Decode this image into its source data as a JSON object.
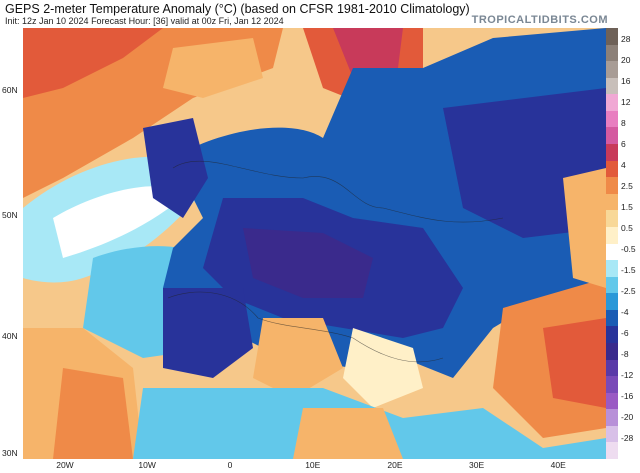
{
  "header": {
    "title": "GEPS 2-meter Temperature Anomaly (°C) (based on CFSR 1981-2010 Climatology)",
    "subtitle": "Init: 12z Jan 10 2024   Forecast Hour: [36]   valid at 00z Fri, Jan 12 2024",
    "brand": "TROPICALTIDBITS.COM"
  },
  "axes": {
    "lat_labels": [
      {
        "text": "60N",
        "frac": 0.145
      },
      {
        "text": "50N",
        "frac": 0.435
      },
      {
        "text": "40N",
        "frac": 0.715
      },
      {
        "text": "30N",
        "frac": 0.995
      }
    ],
    "lon_labels": [
      {
        "text": "20W",
        "frac": 0.072
      },
      {
        "text": "10W",
        "frac": 0.213
      },
      {
        "text": "0",
        "frac": 0.355
      },
      {
        "text": "10E",
        "frac": 0.497
      },
      {
        "text": "20E",
        "frac": 0.638
      },
      {
        "text": "30E",
        "frac": 0.778
      },
      {
        "text": "40E",
        "frac": 0.918
      }
    ]
  },
  "colorbar": {
    "labels": [
      "28",
      "20",
      "16",
      "12",
      "8",
      "6",
      "4",
      "2.5",
      "1.5",
      "0.5",
      "-0.5",
      "-1.5",
      "-2.5",
      "-4",
      "-6",
      "-8",
      "-12",
      "-16",
      "-20",
      "-28"
    ],
    "colors": [
      "#6e6158",
      "#8c8078",
      "#a89c95",
      "#c8bfba",
      "#f0a8d4",
      "#e87ec0",
      "#d45aa0",
      "#c83a5a",
      "#e25a3a",
      "#ef8a48",
      "#f6b46a",
      "#f8d898",
      "#fff0c8",
      "#ffffff",
      "#a8e8f6",
      "#62c8ea",
      "#2a98d8",
      "#1a5cb4",
      "#28339a",
      "#3a2a8c",
      "#5a3aa8",
      "#7a4ab8",
      "#9a5ac4",
      "#b890d8",
      "#d8c0e8",
      "#eedcf0"
    ]
  }
}
